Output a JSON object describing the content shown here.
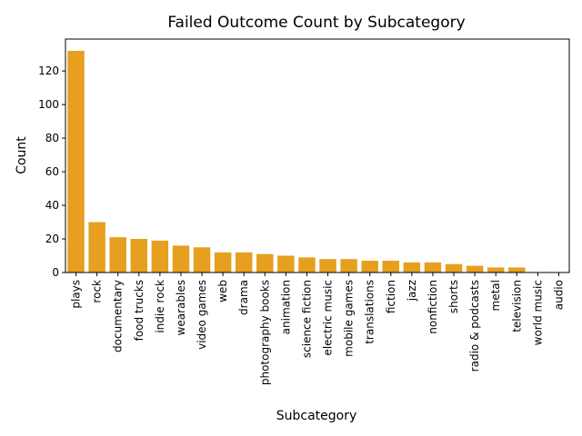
{
  "chart_data": {
    "type": "bar",
    "title": "Failed Outcome Count by Subcategory",
    "xlabel": "Subcategory",
    "ylabel": "Count",
    "ylim": [
      0,
      139
    ],
    "yticks": [
      0,
      20,
      40,
      60,
      80,
      100,
      120
    ],
    "grid": false,
    "bar_color": "#E69F1E",
    "categories": [
      "plays",
      "rock",
      "documentary",
      "food trucks",
      "indie rock",
      "wearables",
      "video games",
      "web",
      "drama",
      "photography books",
      "animation",
      "science fiction",
      "electric music",
      "mobile games",
      "translations",
      "fiction",
      "jazz",
      "nonfiction",
      "shorts",
      "radio & podcasts",
      "metal",
      "television",
      "world music",
      "audio"
    ],
    "values": [
      132,
      30,
      21,
      20,
      19,
      16,
      15,
      12,
      12,
      11,
      10,
      9,
      8,
      8,
      7,
      7,
      6,
      6,
      5,
      4,
      3,
      3,
      0,
      0
    ]
  }
}
